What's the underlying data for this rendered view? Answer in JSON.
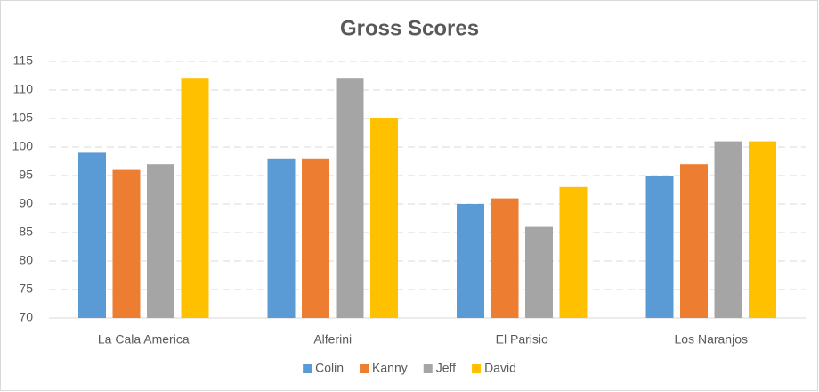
{
  "chart_data": {
    "type": "bar",
    "title": "Gross Scores",
    "categories": [
      "La Cala America",
      "Alferini",
      "El Parisio",
      "Los Naranjos"
    ],
    "series": [
      {
        "name": "Colin",
        "color": "#5b9bd5",
        "values": [
          99,
          98,
          90,
          95
        ]
      },
      {
        "name": "Kanny",
        "color": "#ed7d31",
        "values": [
          96,
          98,
          91,
          97
        ]
      },
      {
        "name": "Jeff",
        "color": "#a5a5a5",
        "values": [
          97,
          112,
          86,
          101
        ]
      },
      {
        "name": "David",
        "color": "#ffc000",
        "values": [
          112,
          105,
          93,
          101
        ]
      }
    ],
    "ylim": [
      70,
      115
    ],
    "yticks": [
      70,
      75,
      80,
      85,
      90,
      95,
      100,
      105,
      110,
      115
    ],
    "grid": true,
    "legend": "bottom"
  }
}
